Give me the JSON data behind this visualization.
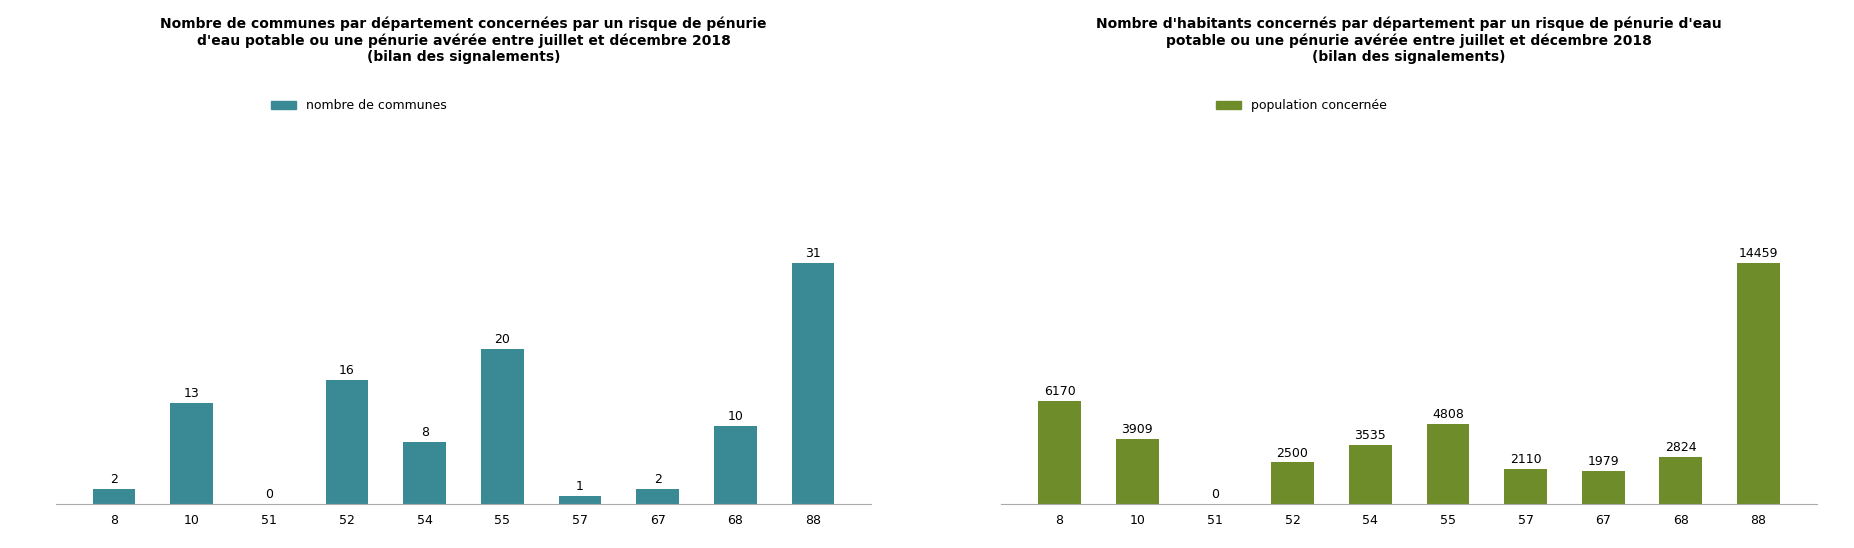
{
  "left_title": "Nombre de communes par département concernées par un risque de pénurie\nd'eau potable ou une pénurie avérée entre juillet et décembre 2018\n(bilan des signalements)",
  "right_title": "Nombre d'habitants concernés par département par un risque de pénurie d'eau\npotable ou une pénurie avérée entre juillet et décembre 2018\n(bilan des signalements)",
  "left_legend": "nombre de communes",
  "right_legend": "population concernée",
  "categories": [
    "8",
    "10",
    "51",
    "52",
    "54",
    "55",
    "57",
    "67",
    "68",
    "88"
  ],
  "left_values": [
    2,
    13,
    0,
    16,
    8,
    20,
    1,
    2,
    10,
    31
  ],
  "right_values": [
    6170,
    3909,
    0,
    2500,
    3535,
    4808,
    2110,
    1979,
    2824,
    14459
  ],
  "left_bar_color": "#3a8a96",
  "right_bar_color": "#6e8c2a",
  "background_color": "#ffffff",
  "title_fontsize": 10,
  "tick_fontsize": 9,
  "legend_fontsize": 9,
  "value_fontsize": 9
}
